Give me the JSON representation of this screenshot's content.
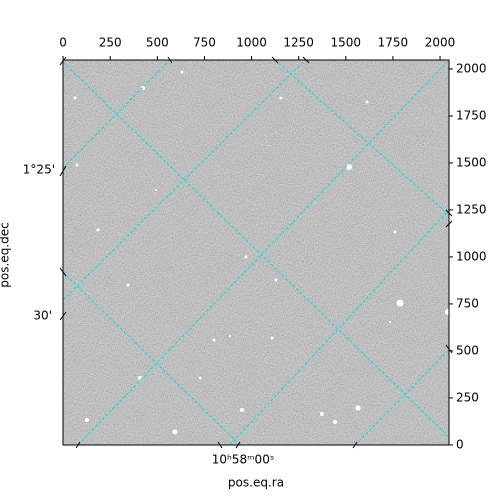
{
  "chart_data": {
    "type": "image",
    "xlabel": "pos.eq.ra",
    "ylabel": "pos.eq.dec",
    "xlim": [
      -0.5,
      2047.5
    ],
    "ylim": [
      -0.5,
      2047.5
    ],
    "xticks": [
      0,
      250,
      500,
      750,
      1000,
      1250,
      1500,
      1750,
      2000
    ],
    "yticks": [
      0,
      250,
      500,
      750,
      1000,
      1250,
      1500,
      1750,
      2000
    ],
    "world_xticks": [
      "10ʰ58ᵐ00ˢ"
    ],
    "world_yticks": [
      "1°25'",
      "30'"
    ],
    "grid_color": "#00e5e5"
  }
}
